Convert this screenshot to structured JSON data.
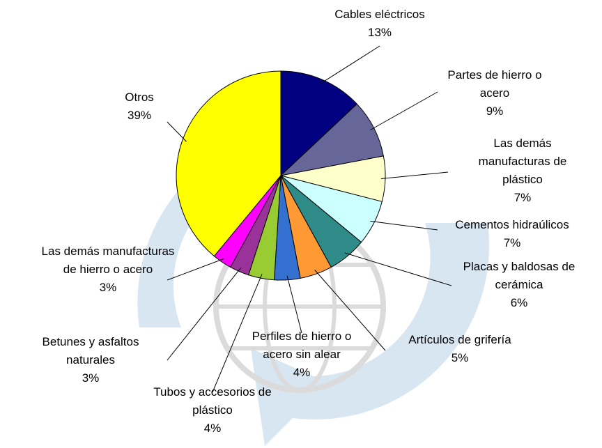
{
  "chart_data": {
    "type": "pie",
    "categories": [
      "Cables eléctricos",
      "Partes de hierro o acero",
      "Las demás manufacturas de plástico",
      "Cementos hidraúlicos",
      "Placas y baldosas de cerámica",
      "Artículos de grifería",
      "Perfiles de hierro o acero sin alear",
      "Tubos y accesorios de plástico",
      "Betunes y asfaltos naturales",
      "Las demás manufacturas de hierro o acero",
      "Otros"
    ],
    "values": [
      13,
      9,
      7,
      7,
      6,
      5,
      4,
      4,
      3,
      3,
      39
    ],
    "value_labels": [
      "13%",
      "9%",
      "7%",
      "7%",
      "6%",
      "5%",
      "4%",
      "4%",
      "3%",
      "3%",
      "39%"
    ],
    "colors": [
      "#000080",
      "#666699",
      "#ffffcc",
      "#ccffff",
      "#2e8b87",
      "#ff9933",
      "#3370d0",
      "#99cc33",
      "#993399",
      "#ff00ff",
      "#ffff00"
    ]
  }
}
